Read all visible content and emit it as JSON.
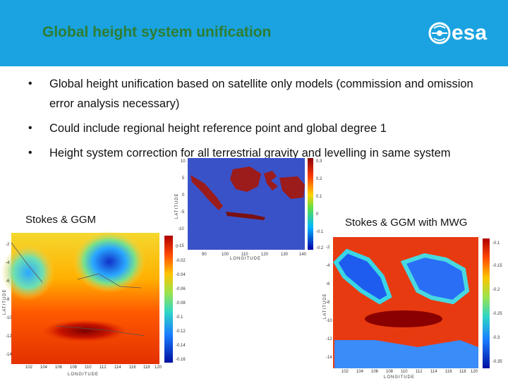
{
  "header": {
    "title": "Global height system unification",
    "logo_text": "esa"
  },
  "bullets": [
    "Global height unification based on satellite only models (commission and omission error analysis necessary)",
    "Could include regional height reference point and global degree 1",
    "Height system correction for all terrestrial gravity and levelling in same system"
  ],
  "figures": {
    "left_label": "Stokes & GGM",
    "right_label": "Stokes & GGM with MWG",
    "axis_longitude": "LONGITUDE",
    "axis_latitude": "LATITUDE",
    "top_map": {
      "x_ticks": [
        "90",
        "100",
        "110",
        "120",
        "130",
        "140"
      ],
      "y_ticks": [
        "10",
        "5",
        "0",
        "-5",
        "-10",
        "-15"
      ],
      "colorbar_ticks": [
        "0.3",
        "0.2",
        "0.1",
        "0",
        "-0.1",
        "-0.2"
      ]
    },
    "left_map": {
      "x_ticks": [
        "102",
        "104",
        "106",
        "108",
        "110",
        "112",
        "114",
        "116",
        "118",
        "120"
      ],
      "y_ticks": [
        "-2",
        "-4",
        "-6",
        "-8",
        "-10",
        "-12",
        "-14"
      ],
      "colorbar_ticks": [
        "0",
        "-0.02",
        "-0.04",
        "-0.06",
        "-0.08",
        "-0.1",
        "-0.12",
        "-0.14",
        "-0.16"
      ]
    },
    "right_map": {
      "x_ticks": [
        "102",
        "104",
        "106",
        "108",
        "110",
        "112",
        "114",
        "116",
        "118",
        "120"
      ],
      "y_ticks": [
        "-2",
        "-4",
        "-6",
        "-8",
        "-10",
        "-12",
        "-14"
      ],
      "colorbar_ticks": [
        "-0.1",
        "-0.15",
        "-0.2",
        "-0.25",
        "-0.3",
        "-0.35"
      ]
    }
  },
  "colors": {
    "header_bg": "#1aa3e0",
    "title": "#2e7d32"
  }
}
